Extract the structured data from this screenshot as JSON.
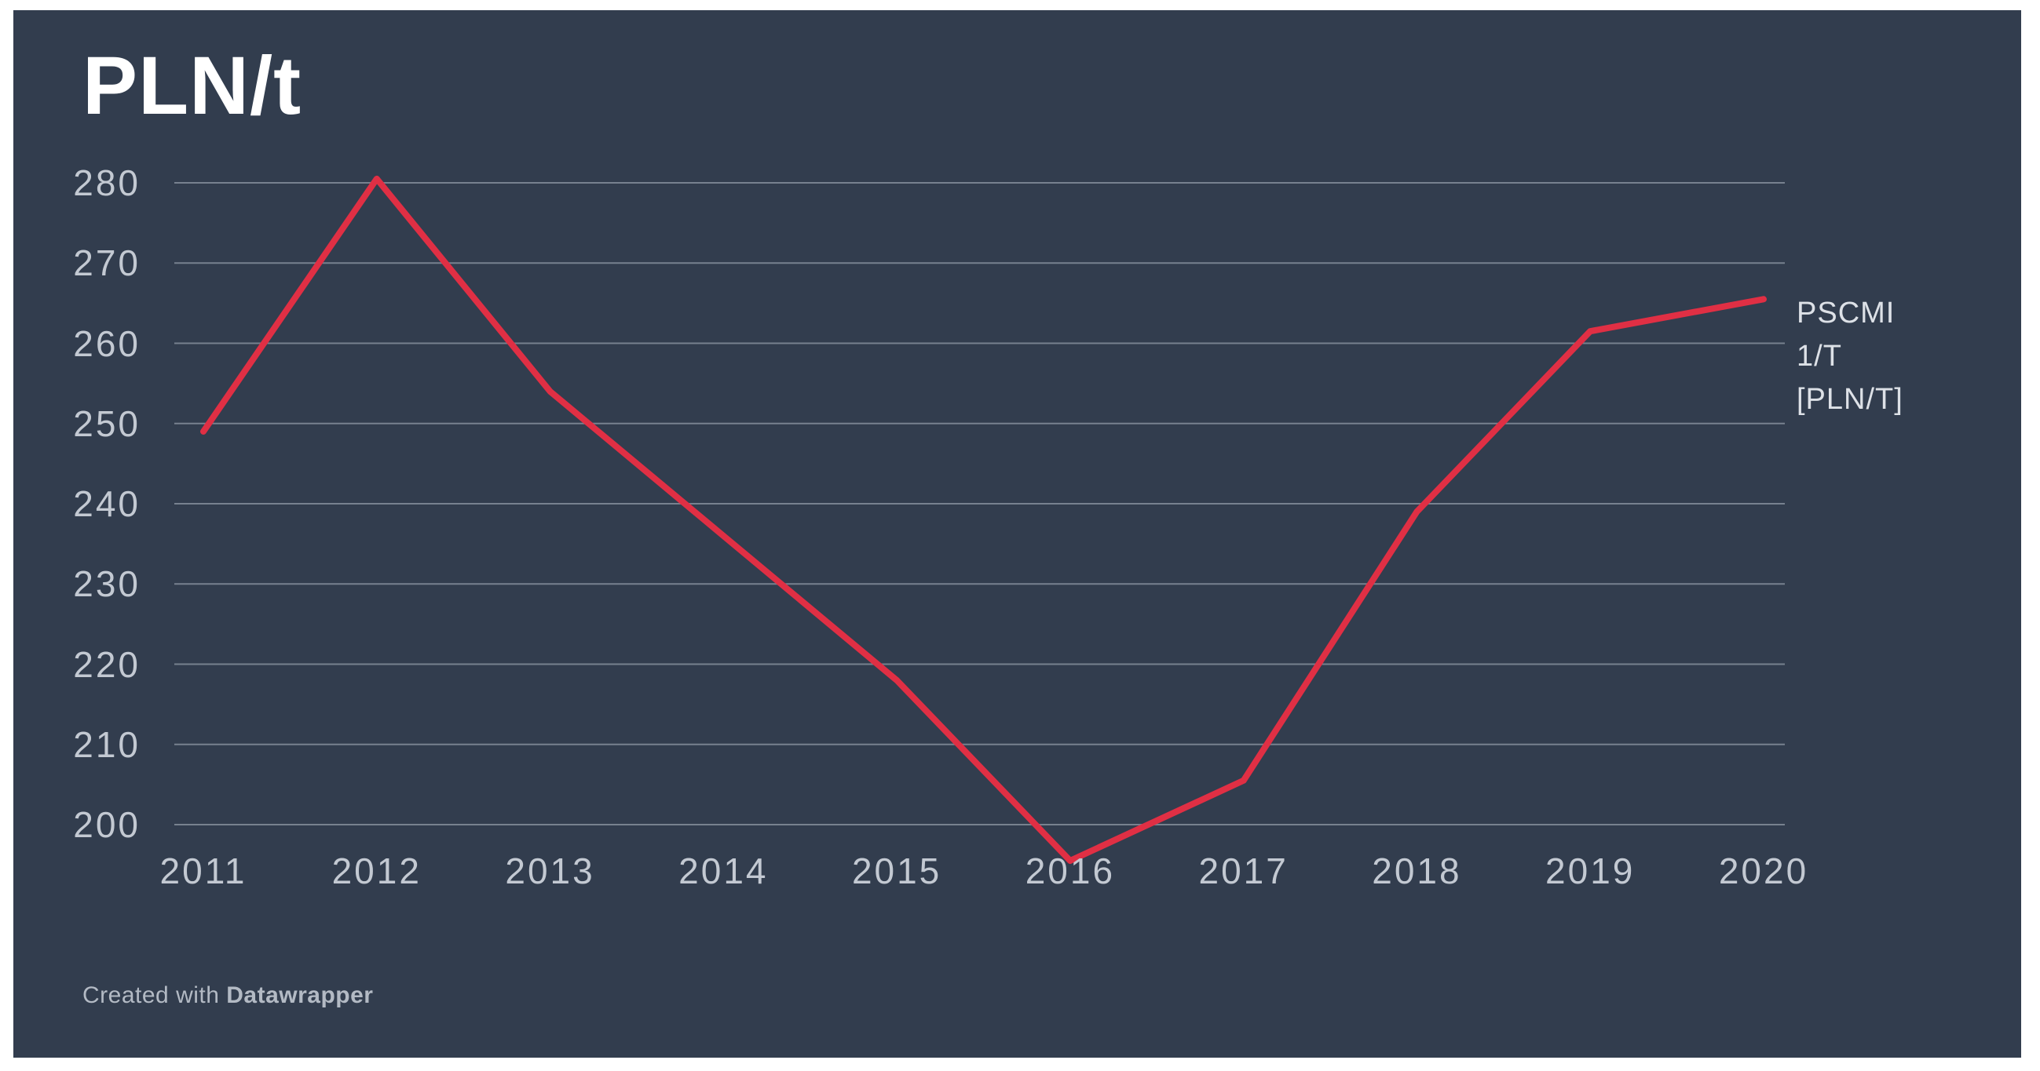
{
  "header": {
    "title": "PLN/t"
  },
  "chart_data": {
    "type": "line",
    "title": "PLN/t",
    "x": [
      2011,
      2012,
      2013,
      2014,
      2015,
      2016,
      2017,
      2018,
      2019,
      2020
    ],
    "series": [
      {
        "name": "PSCMI 1/T [PLN/T]",
        "values": [
          249,
          280.5,
          254,
          236,
          218,
          195.5,
          205.5,
          239,
          261.5,
          265.5
        ]
      }
    ],
    "xlabel": "",
    "ylabel": "PLN/t",
    "y_ticks": [
      200,
      210,
      220,
      230,
      240,
      250,
      260,
      270,
      280
    ],
    "ylim": [
      193,
      285
    ],
    "xlim": [
      2011,
      2020
    ],
    "grid": true,
    "legend_position": "right-of-line-end"
  },
  "legend": {
    "lines": [
      "PSCMI",
      "1/T",
      "[PLN/T]"
    ]
  },
  "footer": {
    "prefix": "Created with ",
    "brand": "Datawrapper"
  },
  "colors": {
    "panel_background": "#323d4e",
    "page_background": "#ffffff",
    "line": "#e02f44",
    "grid": "#77818f",
    "tick_label": "#c3c9d2",
    "title": "#ffffff",
    "legend_text": "#dde1e7",
    "footer_text": "#b3bac4"
  }
}
